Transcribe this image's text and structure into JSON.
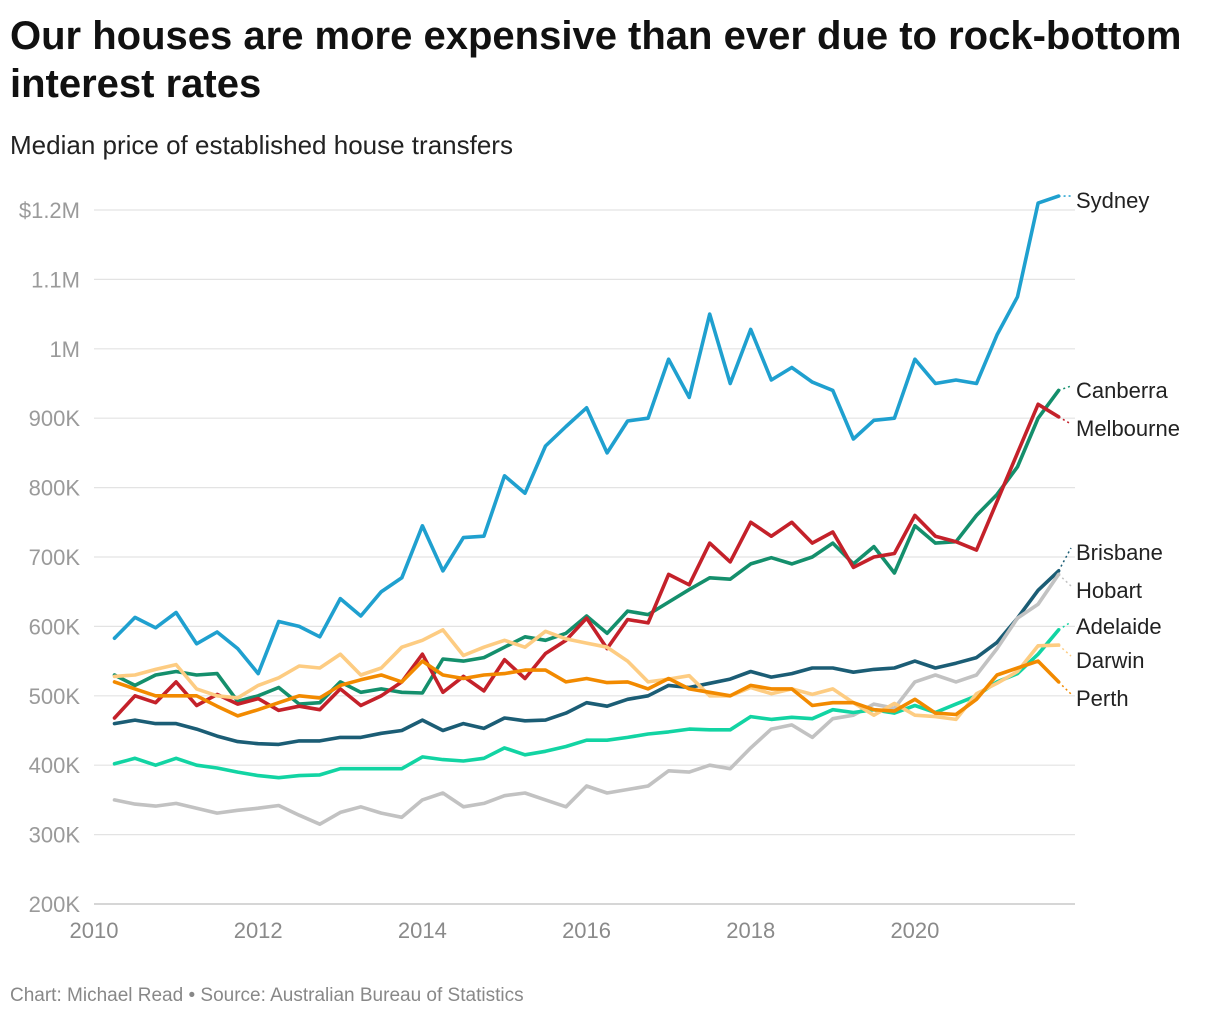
{
  "title": "Our houses are more expensive than ever due to rock-bottom interest rates",
  "subtitle": "Median price of established house transfers",
  "footer": "Chart: Michael Read • Source: Australian Bureau of Statistics",
  "chart_data": {
    "type": "line",
    "xlim": [
      2010,
      2021.95
    ],
    "ylim": [
      200000,
      1200000
    ],
    "yticks": [
      200000,
      300000,
      400000,
      500000,
      600000,
      700000,
      800000,
      900000,
      1000000,
      1100000,
      1200000
    ],
    "ytick_labels": [
      "200K",
      "300K",
      "400K",
      "500K",
      "600K",
      "700K",
      "800K",
      "900K",
      "1M",
      "1.1M",
      "$1.2M"
    ],
    "xticks": [
      2010,
      2012,
      2014,
      2016,
      2018,
      2020
    ],
    "xtick_labels": [
      "2010",
      "2012",
      "2014",
      "2016",
      "2018",
      "2020"
    ],
    "x_start": 2010.25,
    "x_step": 0.25,
    "grid": true,
    "legend": "direct labels at right end",
    "series": [
      {
        "name": "Sydney",
        "color": "#1fa0cf",
        "values": [
          583000,
          613000,
          598000,
          620000,
          575000,
          592000,
          568000,
          532000,
          607000,
          600000,
          585000,
          640000,
          615000,
          650000,
          670000,
          745000,
          680000,
          728000,
          730000,
          817000,
          792000,
          860000,
          888000,
          915000,
          850000,
          896000,
          900000,
          985000,
          930000,
          1050000,
          950000,
          1028000,
          955000,
          973000,
          952000,
          940000,
          870000,
          897000,
          900000,
          985000,
          950000,
          955000,
          950000,
          1020000,
          1075000,
          1210000,
          1220000
        ]
      },
      {
        "name": "Canberra",
        "color": "#148f6c",
        "values": [
          530000,
          515000,
          530000,
          535000,
          530000,
          532000,
          492000,
          500000,
          512000,
          488000,
          490000,
          520000,
          505000,
          510000,
          505000,
          504000,
          553000,
          550000,
          555000,
          570000,
          585000,
          580000,
          590000,
          615000,
          590000,
          622000,
          617000,
          635000,
          653000,
          670000,
          668000,
          690000,
          699000,
          690000,
          700000,
          720000,
          690000,
          715000,
          677000,
          745000,
          720000,
          722000,
          760000,
          790000,
          830000,
          900000,
          940000
        ]
      },
      {
        "name": "Melbourne",
        "color": "#c4212a",
        "values": [
          468000,
          500000,
          490000,
          520000,
          486000,
          502000,
          488000,
          496000,
          479000,
          485000,
          480000,
          510000,
          486000,
          500000,
          520000,
          560000,
          505000,
          528000,
          507000,
          552000,
          525000,
          561000,
          580000,
          612000,
          568000,
          610000,
          605000,
          675000,
          660000,
          720000,
          693000,
          750000,
          730000,
          750000,
          720000,
          736000,
          685000,
          700000,
          705000,
          760000,
          730000,
          722000,
          710000,
          780000,
          850000,
          920000,
          902000
        ]
      },
      {
        "name": "Brisbane",
        "color": "#1b5d75",
        "values": [
          460000,
          465000,
          460000,
          460000,
          452000,
          442000,
          434000,
          431000,
          430000,
          435000,
          435000,
          440000,
          440000,
          446000,
          450000,
          465000,
          450000,
          460000,
          453000,
          468000,
          464000,
          465000,
          475000,
          490000,
          485000,
          495000,
          500000,
          515000,
          512000,
          518000,
          524000,
          535000,
          527000,
          532000,
          540000,
          540000,
          534000,
          538000,
          540000,
          550000,
          540000,
          547000,
          555000,
          577000,
          612000,
          652000,
          680000
        ]
      },
      {
        "name": "Hobart",
        "color": "#c2c2c2",
        "values": [
          350000,
          344000,
          341000,
          345000,
          338000,
          331000,
          335000,
          338000,
          342000,
          328000,
          315000,
          332000,
          340000,
          331000,
          325000,
          350000,
          360000,
          340000,
          345000,
          356000,
          360000,
          350000,
          340000,
          370000,
          360000,
          365000,
          370000,
          392000,
          390000,
          400000,
          395000,
          425000,
          452000,
          458000,
          440000,
          467000,
          472000,
          488000,
          482000,
          520000,
          530000,
          520000,
          530000,
          568000,
          612000,
          632000,
          675000
        ]
      },
      {
        "name": "Adelaide",
        "color": "#12d4a3",
        "values": [
          402000,
          410000,
          400000,
          410000,
          400000,
          396000,
          390000,
          385000,
          382000,
          385000,
          386000,
          395000,
          395000,
          395000,
          395000,
          412000,
          408000,
          406000,
          410000,
          425000,
          415000,
          420000,
          427000,
          436000,
          436000,
          440000,
          445000,
          448000,
          452000,
          451000,
          451000,
          470000,
          466000,
          469000,
          467000,
          480000,
          476000,
          480000,
          475000,
          486000,
          476000,
          488000,
          500000,
          520000,
          532000,
          560000,
          595000
        ]
      },
      {
        "name": "Darwin",
        "color": "#fdcc82",
        "values": [
          528000,
          530000,
          538000,
          545000,
          510000,
          500000,
          497000,
          515000,
          526000,
          543000,
          540000,
          560000,
          530000,
          540000,
          570000,
          580000,
          595000,
          558000,
          570000,
          580000,
          570000,
          593000,
          582000,
          576000,
          570000,
          550000,
          520000,
          524000,
          529000,
          500000,
          500000,
          512000,
          503000,
          510000,
          502000,
          510000,
          490000,
          472000,
          489000,
          472000,
          470000,
          466000,
          503000,
          518000,
          535000,
          572000,
          573000
        ]
      },
      {
        "name": "Perth",
        "color": "#f28a00",
        "values": [
          520000,
          510000,
          500000,
          500000,
          500000,
          485000,
          471000,
          480000,
          490000,
          500000,
          497000,
          515000,
          523000,
          530000,
          520000,
          550000,
          530000,
          525000,
          530000,
          532000,
          537000,
          537000,
          520000,
          525000,
          519000,
          520000,
          510000,
          525000,
          510000,
          505000,
          500000,
          515000,
          510000,
          510000,
          486000,
          490000,
          490000,
          480000,
          478000,
          495000,
          475000,
          473000,
          495000,
          530000,
          540000,
          550000,
          520000
        ]
      }
    ]
  }
}
